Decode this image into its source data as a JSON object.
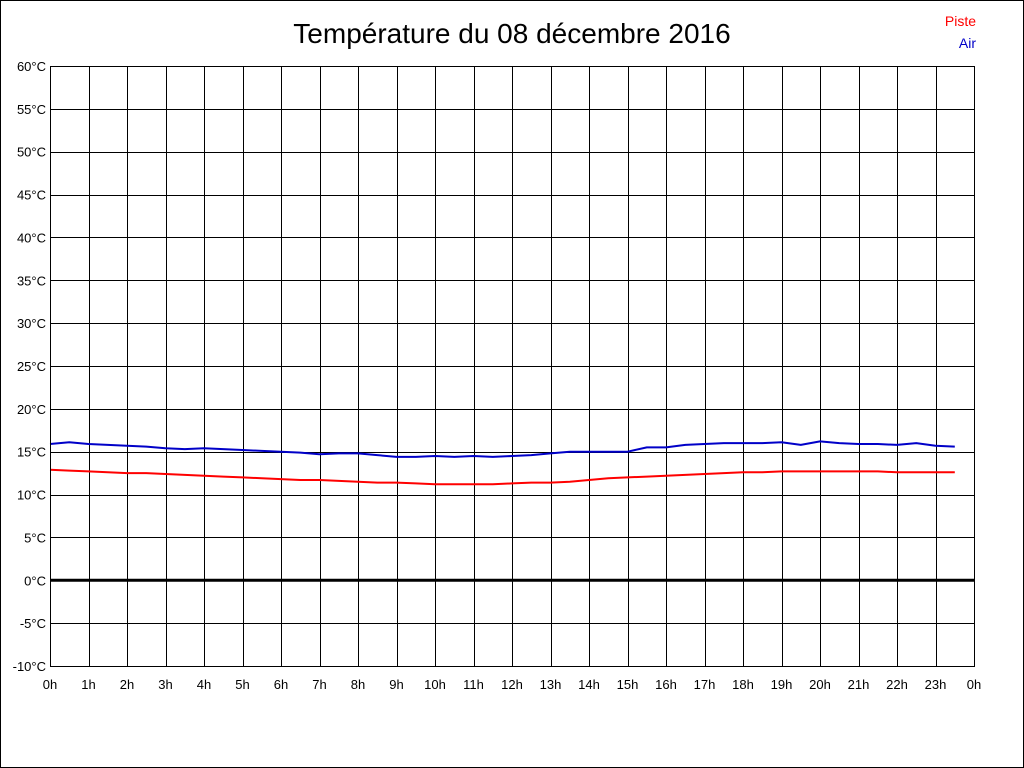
{
  "chart_data": {
    "type": "line",
    "title": "Température du 08 décembre 2016",
    "xlabel": "",
    "ylabel": "",
    "ylim": [
      -10,
      60
    ],
    "xlim": [
      0,
      24
    ],
    "y_ticks": [
      -10,
      -5,
      0,
      5,
      10,
      15,
      20,
      25,
      30,
      35,
      40,
      45,
      50,
      55,
      60
    ],
    "y_tick_labels": [
      "-10°C",
      "-5°C",
      "0°C",
      "5°C",
      "10°C",
      "15°C",
      "20°C",
      "25°C",
      "30°C",
      "35°C",
      "40°C",
      "45°C",
      "50°C",
      "55°C",
      "60°C"
    ],
    "x_ticks": [
      0,
      1,
      2,
      3,
      4,
      5,
      6,
      7,
      8,
      9,
      10,
      11,
      12,
      13,
      14,
      15,
      16,
      17,
      18,
      19,
      20,
      21,
      22,
      23,
      24
    ],
    "x_tick_labels": [
      "0h",
      "1h",
      "2h",
      "3h",
      "4h",
      "5h",
      "6h",
      "7h",
      "8h",
      "9h",
      "10h",
      "11h",
      "12h",
      "13h",
      "14h",
      "15h",
      "16h",
      "17h",
      "18h",
      "19h",
      "20h",
      "21h",
      "22h",
      "23h",
      "0h"
    ],
    "grid": true,
    "legend_position": "top-right",
    "series": [
      {
        "name": "Piste",
        "color": "#ff0000",
        "x": [
          0,
          0.5,
          1,
          1.5,
          2,
          2.5,
          3,
          3.5,
          4,
          4.5,
          5,
          5.5,
          6,
          6.5,
          7,
          7.5,
          8,
          8.5,
          9,
          9.5,
          10,
          10.5,
          11,
          11.5,
          12,
          12.5,
          13,
          13.5,
          14,
          14.5,
          15,
          15.5,
          16,
          16.5,
          17,
          17.5,
          18,
          18.5,
          19,
          19.5,
          20,
          20.5,
          21,
          21.5,
          22,
          22.5,
          23,
          23.5
        ],
        "values": [
          12.9,
          12.8,
          12.7,
          12.6,
          12.5,
          12.5,
          12.4,
          12.3,
          12.2,
          12.1,
          12.0,
          11.9,
          11.8,
          11.7,
          11.7,
          11.6,
          11.5,
          11.4,
          11.4,
          11.3,
          11.2,
          11.2,
          11.2,
          11.2,
          11.3,
          11.4,
          11.4,
          11.5,
          11.7,
          11.9,
          12.0,
          12.1,
          12.2,
          12.3,
          12.4,
          12.5,
          12.6,
          12.6,
          12.7,
          12.7,
          12.7,
          12.7,
          12.7,
          12.7,
          12.6,
          12.6,
          12.6,
          12.6
        ]
      },
      {
        "name": "Air",
        "color": "#0000c8",
        "x": [
          0,
          0.5,
          1,
          1.5,
          2,
          2.5,
          3,
          3.5,
          4,
          4.5,
          5,
          5.5,
          6,
          6.5,
          7,
          7.5,
          8,
          8.5,
          9,
          9.5,
          10,
          10.5,
          11,
          11.5,
          12,
          12.5,
          13,
          13.5,
          14,
          14.5,
          15,
          15.5,
          16,
          16.5,
          17,
          17.5,
          18,
          18.5,
          19,
          19.5,
          20,
          20.5,
          21,
          21.5,
          22,
          22.5,
          23,
          23.5
        ],
        "values": [
          15.9,
          16.1,
          15.9,
          15.8,
          15.7,
          15.6,
          15.4,
          15.3,
          15.4,
          15.3,
          15.2,
          15.1,
          15.0,
          14.9,
          14.7,
          14.8,
          14.8,
          14.6,
          14.4,
          14.4,
          14.5,
          14.4,
          14.5,
          14.4,
          14.5,
          14.6,
          14.8,
          15.0,
          15.0,
          15.0,
          15.0,
          15.5,
          15.5,
          15.8,
          15.9,
          16.0,
          16.0,
          16.0,
          16.1,
          15.8,
          16.2,
          16.0,
          15.9,
          15.9,
          15.8,
          16.0,
          15.7,
          15.6
        ]
      }
    ]
  }
}
